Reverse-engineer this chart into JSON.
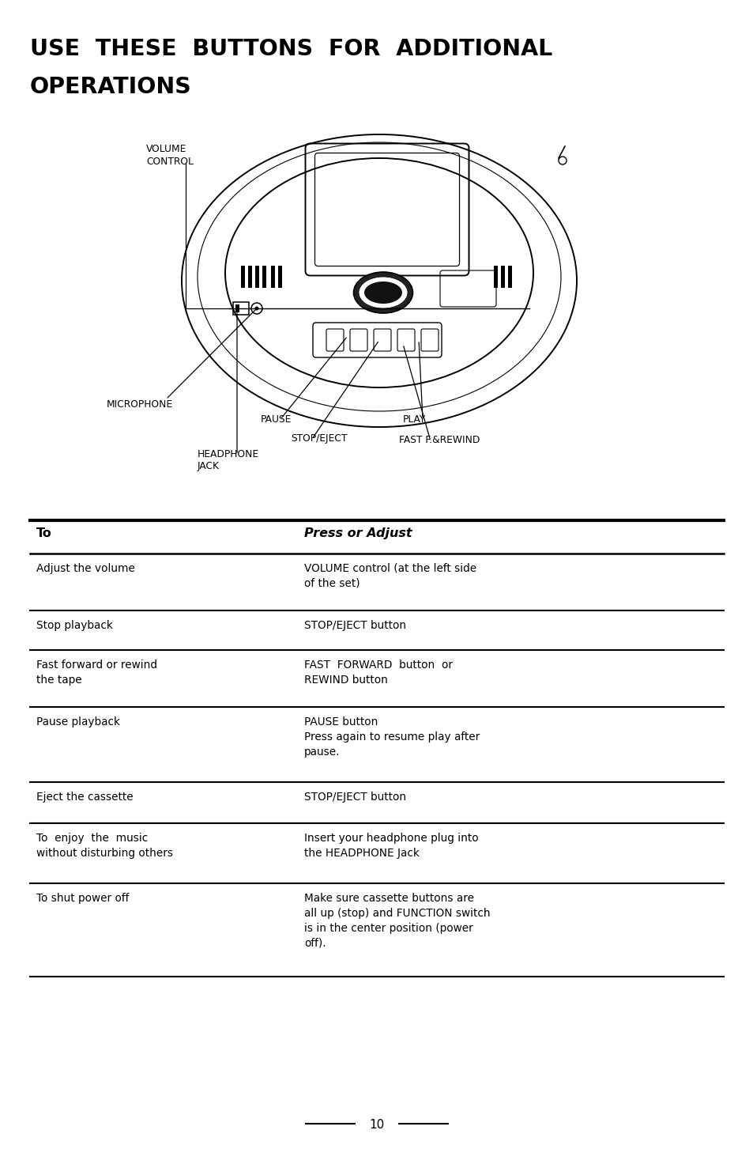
{
  "title_line1": "USE  THESE  BUTTONS  FOR  ADDITIONAL",
  "title_line2": "OPERATIONS",
  "bg_color": "#ffffff",
  "text_color": "#000000",
  "page_number": "10",
  "table_header_left": "To",
  "table_header_right": "Press or Adjust",
  "table_rows": [
    {
      "left": "Adjust the volume",
      "right": "VOLUME control (at the left side\nof the set)"
    },
    {
      "left": "Stop playback",
      "right": "STOP/EJECT button"
    },
    {
      "left": "Fast forward or rewind\nthe tape",
      "right": "FAST  FORWARD  button  or\nREWIND button"
    },
    {
      "left": "Pause playback",
      "right": "PAUSE button\nPress again to resume play after\npause."
    },
    {
      "left": "Eject the cassette",
      "right": "STOP/EJECT button"
    },
    {
      "left": "To  enjoy  the  music\nwithout disturbing others",
      "right": "Insert your headphone plug into\nthe HEADPHONE Jack"
    },
    {
      "left": "To shut power off",
      "right": "Make sure cassette buttons are\nall up (stop) and FUNCTION switch\nis in the center position (power\noff)."
    }
  ]
}
